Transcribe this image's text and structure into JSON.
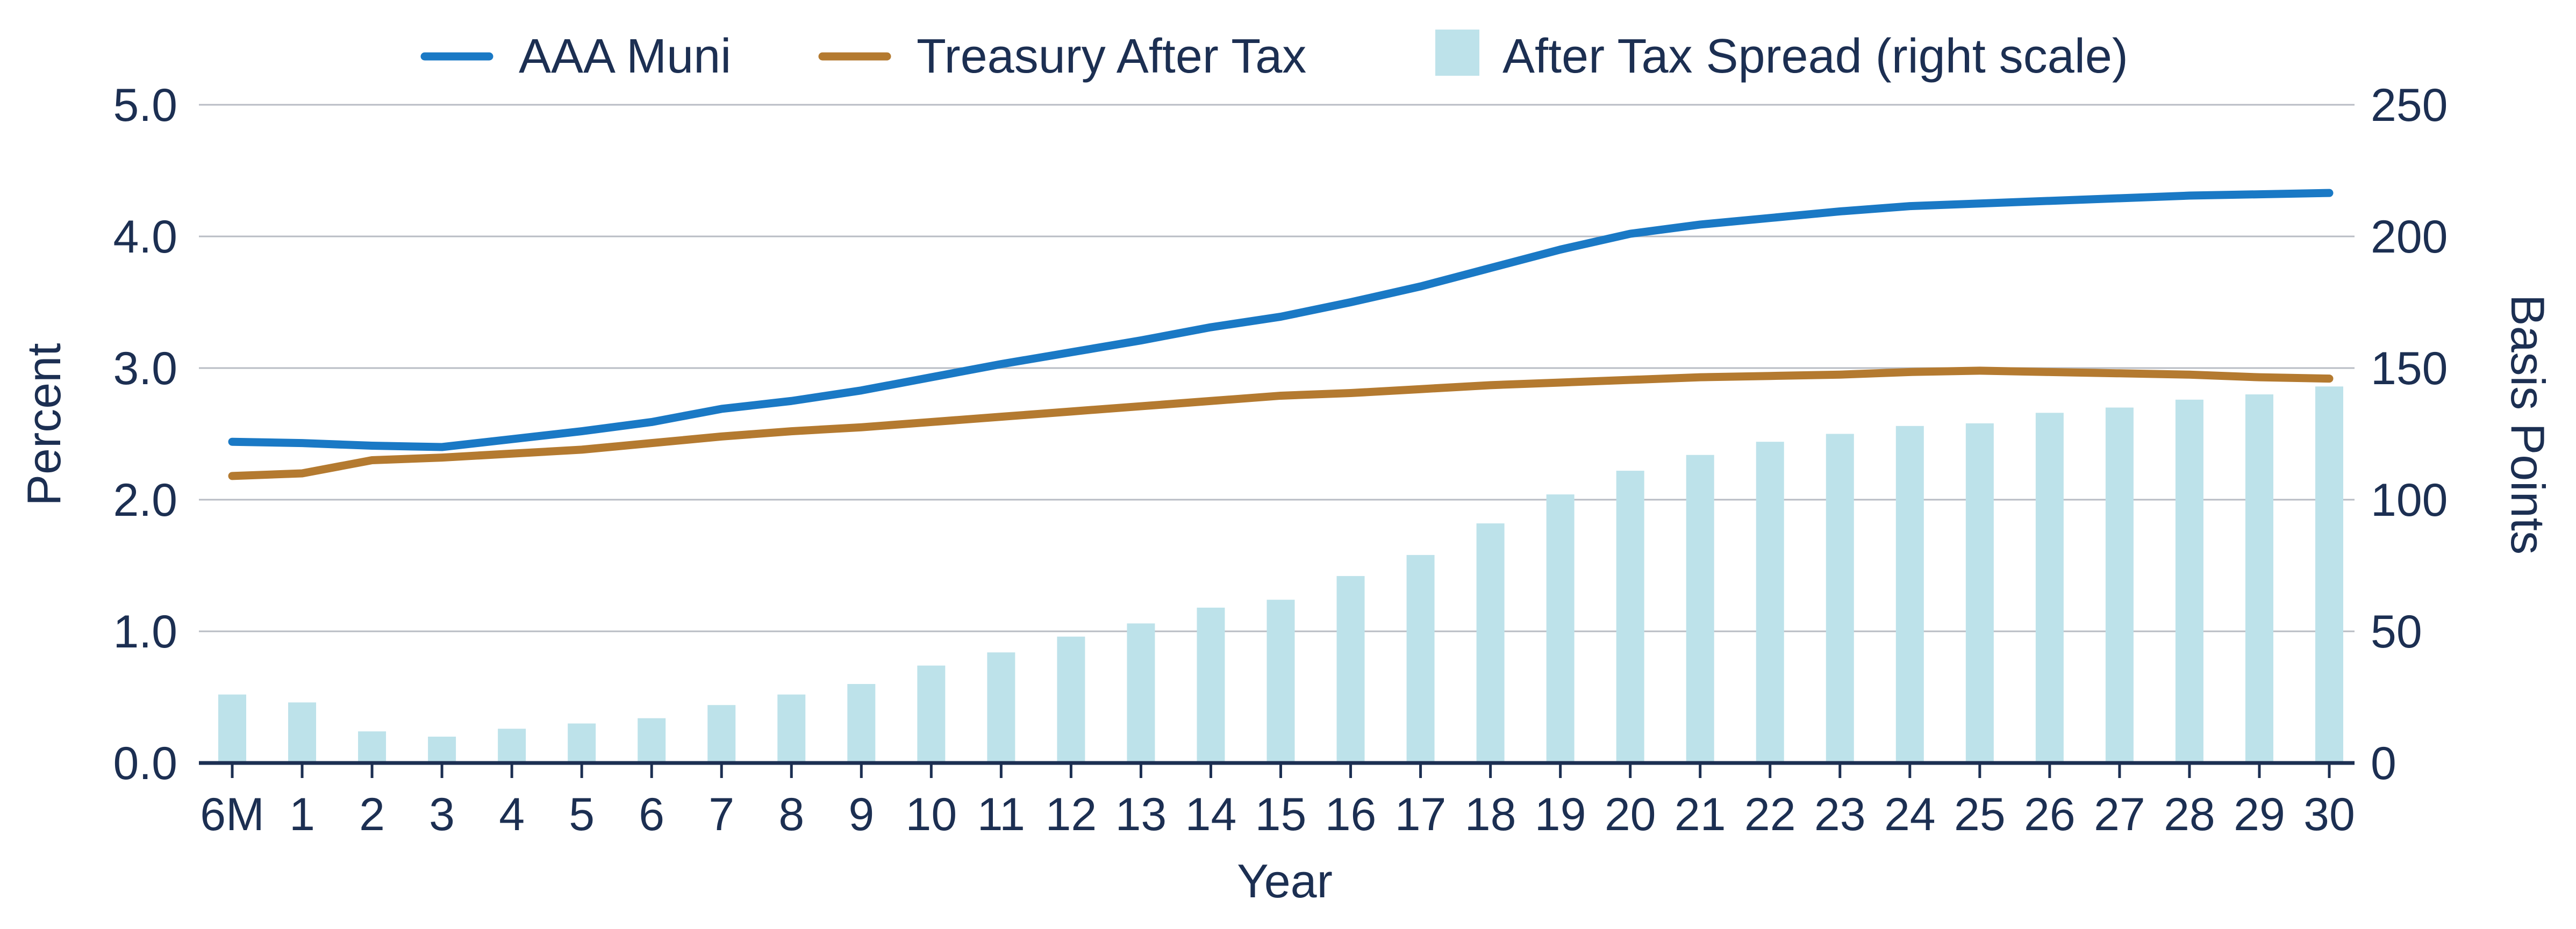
{
  "chart_data": {
    "type": "bar+line",
    "xlabel": "Year",
    "ylabel": "Percent",
    "y2label": "Basis Points",
    "categories": [
      "6M",
      "1",
      "2",
      "3",
      "4",
      "5",
      "6",
      "7",
      "8",
      "9",
      "10",
      "11",
      "12",
      "13",
      "14",
      "15",
      "16",
      "17",
      "18",
      "19",
      "20",
      "21",
      "22",
      "23",
      "24",
      "25",
      "26",
      "27",
      "28",
      "29",
      "30"
    ],
    "ylim": [
      0,
      5
    ],
    "y2lim": [
      0,
      250
    ],
    "yticks": [
      "0.0",
      "1.0",
      "2.0",
      "3.0",
      "4.0",
      "5.0"
    ],
    "y2ticks": [
      "0",
      "50",
      "100",
      "150",
      "200",
      "250"
    ],
    "grid": true,
    "legend_position": "top",
    "series": [
      {
        "name": "AAA Muni",
        "kind": "line",
        "axis": "left",
        "color": "#1a79c5",
        "values": [
          2.44,
          2.43,
          2.41,
          2.4,
          2.46,
          2.52,
          2.59,
          2.69,
          2.75,
          2.83,
          2.93,
          3.03,
          3.12,
          3.21,
          3.31,
          3.39,
          3.5,
          3.62,
          3.76,
          3.9,
          4.02,
          4.09,
          4.14,
          4.19,
          4.23,
          4.25,
          4.27,
          4.29,
          4.31,
          4.32,
          4.33
        ]
      },
      {
        "name": "Treasury After Tax",
        "kind": "line",
        "axis": "left",
        "color": "#b47a30",
        "values": [
          2.18,
          2.2,
          2.3,
          2.32,
          2.35,
          2.38,
          2.43,
          2.48,
          2.52,
          2.55,
          2.59,
          2.63,
          2.67,
          2.71,
          2.75,
          2.79,
          2.81,
          2.84,
          2.87,
          2.89,
          2.91,
          2.93,
          2.94,
          2.95,
          2.97,
          2.98,
          2.97,
          2.96,
          2.95,
          2.93,
          2.92
        ]
      },
      {
        "name": "After Tax Spread (right scale)",
        "kind": "bar",
        "axis": "right",
        "color": "#bde2ea",
        "values": [
          26,
          23,
          12,
          10,
          13,
          15,
          17,
          22,
          26,
          30,
          37,
          42,
          48,
          53,
          59,
          62,
          71,
          79,
          91,
          102,
          111,
          117,
          122,
          125,
          128,
          129,
          133,
          135,
          138,
          140,
          143
        ]
      }
    ]
  }
}
